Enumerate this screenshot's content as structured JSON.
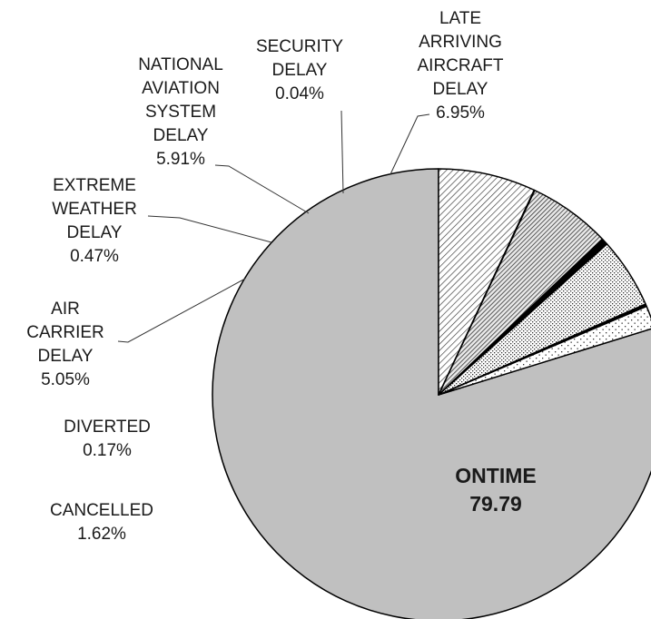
{
  "chart_data": {
    "type": "pie",
    "slices": [
      {
        "label_lines": [
          "ONTIME",
          "79.79"
        ],
        "value": 79.79,
        "fill": "solid-gray",
        "color": "#c0c0c0"
      },
      {
        "label_lines": [
          "CANCELLED",
          "1.62%"
        ],
        "value": 1.62,
        "fill": "sparse-dots",
        "color": "#ffffff"
      },
      {
        "label_lines": [
          "DIVERTED",
          "0.17%"
        ],
        "value": 0.17,
        "fill": "black",
        "color": "#000000"
      },
      {
        "label_lines": [
          "AIR",
          "CARRIER",
          "DELAY",
          "5.05%"
        ],
        "value": 5.05,
        "fill": "dots",
        "color": "#ffffff"
      },
      {
        "label_lines": [
          "EXTREME",
          "WEATHER",
          "DELAY",
          "0.47%"
        ],
        "value": 0.47,
        "fill": "black",
        "color": "#000000"
      },
      {
        "label_lines": [
          "NATIONAL",
          "AVIATION",
          "SYSTEM",
          "DELAY",
          "5.91%"
        ],
        "value": 5.91,
        "fill": "dense-hatch",
        "color": "#ffffff"
      },
      {
        "label_lines": [
          "SECURITY",
          "DELAY",
          "0.04%"
        ],
        "value": 0.04,
        "fill": "black",
        "color": "#000000"
      },
      {
        "label_lines": [
          "LATE",
          "ARRIVING",
          "AIRCRAFT",
          "DELAY",
          "6.95%"
        ],
        "value": 6.95,
        "fill": "diagonal-hatch",
        "color": "#ffffff"
      }
    ],
    "start": "12 o'clock",
    "direction": "counterclockwise",
    "legend": "none"
  }
}
